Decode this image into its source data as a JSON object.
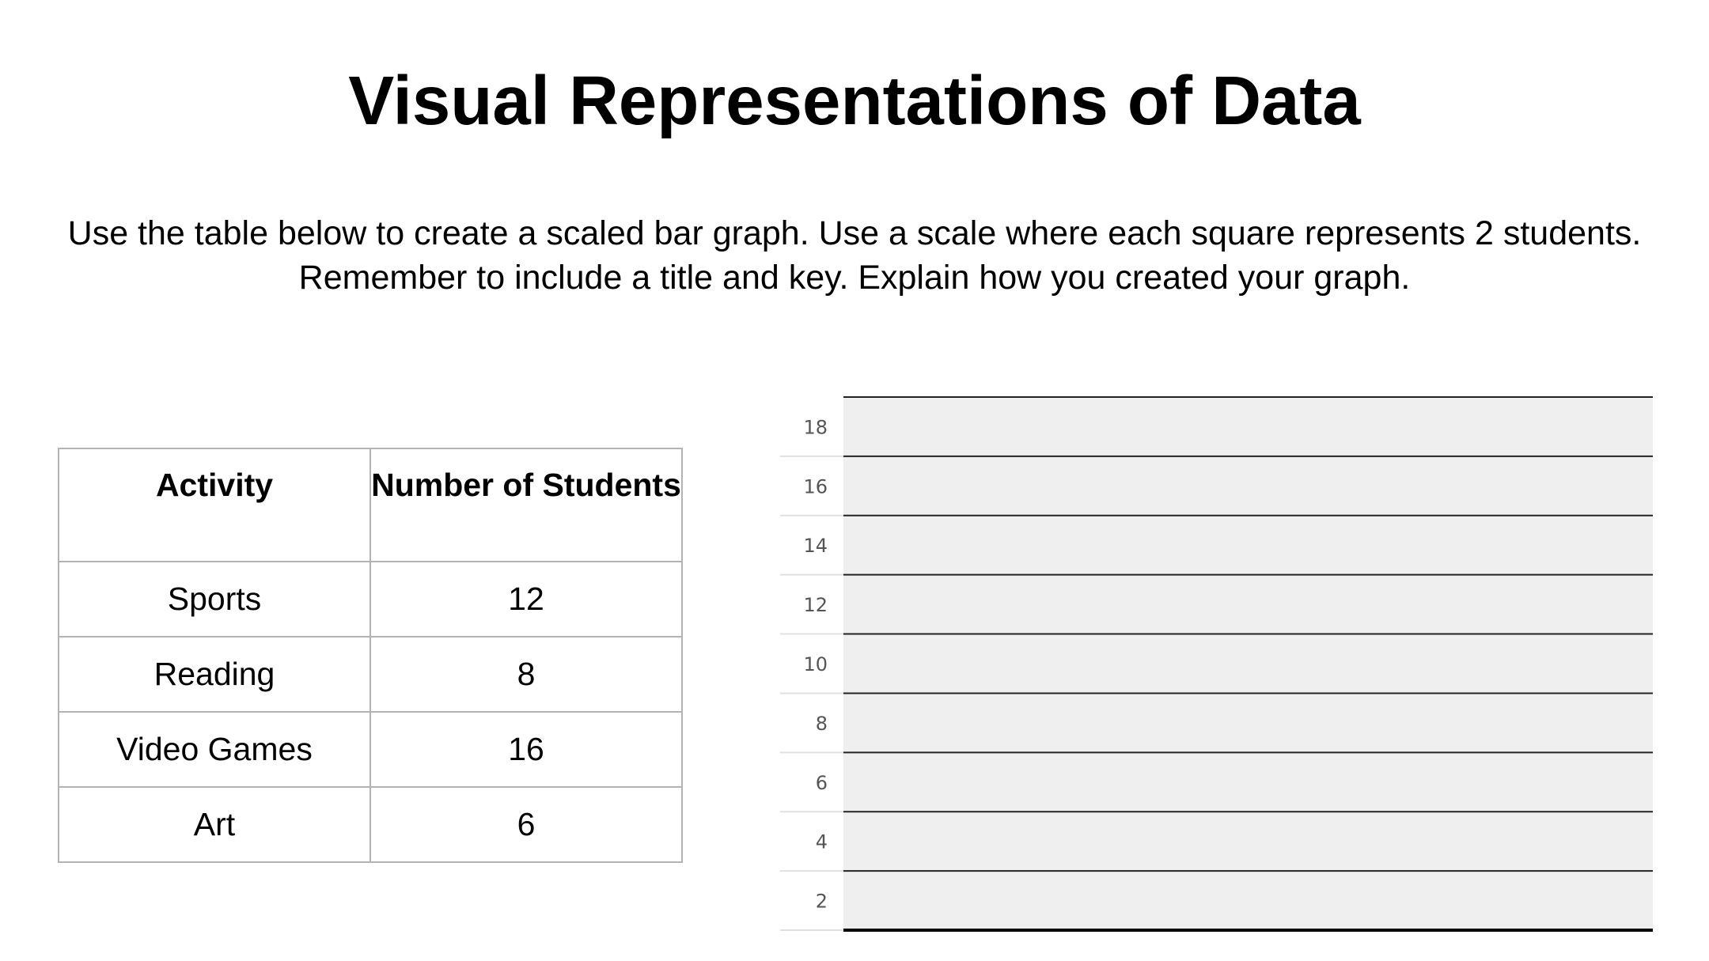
{
  "title": "Visual Representations of Data",
  "instructions": "Use the table below to create a scaled bar graph. Use a scale where each square represents 2 students. Remember to include a title and key. Explain how you created your graph.",
  "table": {
    "headers": [
      "Activity",
      "Number of Students"
    ],
    "rows": [
      [
        "Sports",
        "12"
      ],
      [
        "Reading",
        "8"
      ],
      [
        "Video Games",
        "16"
      ],
      [
        "Art",
        "6"
      ]
    ]
  },
  "chart_data": {
    "type": "bar",
    "y_ticks": [
      18,
      16,
      14,
      12,
      10,
      8,
      6,
      4,
      2
    ],
    "ylim": [
      0,
      18
    ],
    "categories": [],
    "series": [],
    "grid": true
  }
}
